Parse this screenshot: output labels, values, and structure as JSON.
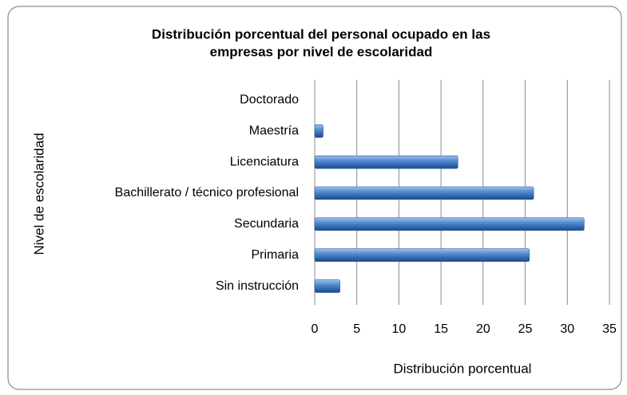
{
  "chart_data": {
    "type": "bar",
    "orientation": "horizontal",
    "title": [
      "Distribución porcentual  del personal  ocupado en las",
      "empresas por nivel de escolaridad"
    ],
    "x_label": "Distribución porcentual",
    "y_label": "Nivel de escolaridad",
    "categories": [
      "Doctorado",
      "Maestría",
      "Licenciatura",
      "Bachillerato / técnico profesional",
      "Secundaria",
      "Primaria",
      "Sin instrucción"
    ],
    "values": [
      0,
      1,
      17,
      26,
      32,
      25.5,
      3
    ],
    "color": "#4f81bd",
    "xlim": [
      0,
      35
    ],
    "xticks": [
      0,
      5,
      10,
      15,
      20,
      25,
      30,
      35
    ],
    "grid": true
  }
}
